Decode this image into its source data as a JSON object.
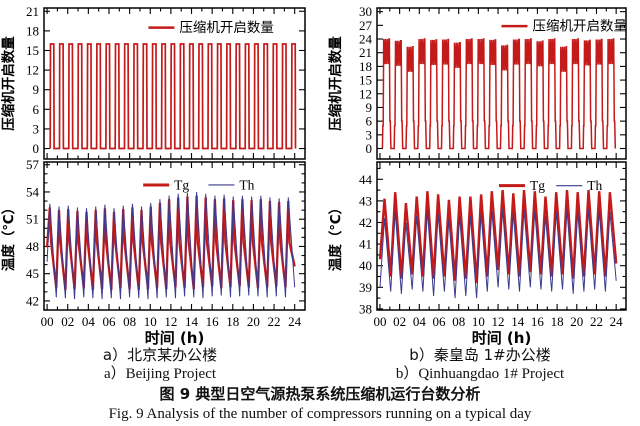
{
  "colors": {
    "tg_red": "#C41A1A",
    "th_navy": "#3A3A8F",
    "axis": "#000000"
  },
  "captions": {
    "left_cn": "a）北京某办公楼",
    "left_en": "a）Beijing Project",
    "right_cn": "b）秦皇岛 1#办公楼",
    "right_en": "b）Qinhuangdao 1# Project",
    "fig_cn": "图 9  典型日空气源热泵系统压缩机运行台数分析",
    "fig_en": "Fig. 9  Analysis of the number of compressors running on a typical day"
  },
  "chart_data": [
    {
      "id": "beijing-compressors",
      "type": "pulse",
      "ylabel": "压缩机开启数量",
      "xlabel": "",
      "ylim": [
        -1.6,
        21.5
      ],
      "yticks": [
        0,
        3,
        6,
        9,
        12,
        15,
        18,
        21
      ],
      "y_minor_step": 0,
      "xlim": [
        -0.3,
        25.0
      ],
      "xtick_step": 2,
      "x_minor_step": 1,
      "xtick_labels": null,
      "legend": [
        {
          "label": "压缩机开启数量",
          "color": "#C41A1A",
          "lw": 2.5
        }
      ],
      "series": [
        {
          "name": "压缩机开启数量",
          "color": "#C41A1A",
          "lw": 1.7,
          "base": 0,
          "start": 0.3,
          "period": 0.9,
          "pulse_width": 0.38,
          "shoulder": 0,
          "notch": 0,
          "peaks": [
            16,
            16,
            16,
            16,
            16,
            16,
            16,
            16,
            16,
            16,
            16,
            16,
            16,
            16,
            16,
            16,
            16,
            16,
            16,
            16,
            16,
            16,
            16,
            16,
            16,
            16,
            16
          ]
        }
      ]
    },
    {
      "id": "qinhuangdao-compressors",
      "type": "pulse",
      "ylabel": "压缩机开启数量",
      "xlabel": "",
      "ylim": [
        -2.3,
        30.8
      ],
      "yticks": [
        0,
        3,
        6,
        9,
        12,
        15,
        18,
        21,
        24,
        27,
        30
      ],
      "y_minor_step": 0,
      "xlim": [
        -0.3,
        25.0
      ],
      "xtick_step": 2,
      "x_minor_step": 1,
      "xtick_labels": null,
      "legend": [
        {
          "label": "压缩机开启数量",
          "color": "#C41A1A",
          "lw": 2.5
        }
      ],
      "series": [
        {
          "name": "压缩机开启数量",
          "color": "#C41A1A",
          "lw": 1.5,
          "base": 0,
          "start": 0.25,
          "period": 1.2,
          "pulse_width": 0.86,
          "shoulder": 5,
          "notch": 5.5,
          "peaks": [
            24,
            23.6,
            22.3,
            24,
            23.8,
            23.9,
            23.2,
            24,
            24,
            23.8,
            22.6,
            23.9,
            24,
            23.5,
            24,
            22.3,
            24,
            23.7,
            23.9,
            24
          ]
        }
      ]
    },
    {
      "id": "beijing-temperatures",
      "type": "spikes",
      "ylabel": "温度（℃）",
      "xlabel": "时间 (h)",
      "ylim": [
        41.0,
        57.3
      ],
      "yticks": [
        42,
        45,
        48,
        51,
        54,
        57
      ],
      "y_minor_step": 1,
      "xlim": [
        -0.3,
        25.0
      ],
      "xtick_step": 2,
      "x_minor_step": 1,
      "xtick_labels": [
        "00",
        "02",
        "04",
        "06",
        "08",
        "10",
        "12",
        "14",
        "16",
        "18",
        "20",
        "22",
        "24"
      ],
      "span": 24,
      "legend": [
        {
          "label": "Tg",
          "color": "#C41A1A",
          "lw": 3
        },
        {
          "label": "Th",
          "color": "#3A3A8F",
          "lw": 1.2
        }
      ],
      "series": [
        {
          "name": "Tg",
          "color": "#C41A1A",
          "lw": 2.3,
          "peak_pos": 0.3,
          "shoulder": 48.4,
          "shoulder_pos": 0.44,
          "peaks": [
            52.3,
            52.0,
            52.1,
            51.9,
            51.8,
            52.0,
            52.2,
            51.8,
            52.1,
            52.3,
            52.0,
            52.4,
            52.8,
            53.2,
            53.4,
            53.5,
            53.6,
            53.4,
            53.2,
            53.3,
            53.1,
            53.2,
            53.1,
            53.2,
            53.0,
            52.9,
            53.0
          ],
          "mins": [
            47.9,
            43.4,
            43.2,
            43.3,
            43.4,
            43.2,
            43.3,
            43.2,
            43.4,
            43.3,
            43.2,
            43.3,
            43.4,
            43.3,
            43.5,
            43.4,
            43.3,
            43.5,
            43.6,
            43.4,
            43.5,
            43.6,
            43.5,
            43.4,
            43.5,
            43.6,
            43.5,
            45.8
          ]
        },
        {
          "name": "Th",
          "color": "#3A3A8F",
          "lw": 1.0,
          "peak_pos": 0.3,
          "shoulder": null,
          "shoulder_pos": 0,
          "peaks": [
            52.7,
            52.4,
            52.5,
            52.3,
            52.2,
            52.4,
            52.6,
            52.2,
            52.5,
            52.7,
            52.4,
            52.8,
            53.2,
            53.6,
            53.8,
            53.9,
            54.0,
            53.8,
            53.6,
            53.7,
            53.5,
            53.6,
            53.5,
            53.6,
            53.4,
            53.3,
            53.4
          ],
          "mins": [
            46.3,
            42.4,
            42.3,
            42.2,
            42.4,
            42.3,
            42.2,
            42.3,
            42.2,
            42.4,
            42.3,
            42.2,
            42.3,
            42.4,
            42.3,
            42.5,
            42.4,
            42.3,
            42.5,
            42.6,
            42.4,
            42.5,
            42.6,
            42.5,
            42.4,
            42.5,
            42.4,
            43.5
          ]
        }
      ]
    },
    {
      "id": "qinhuangdao-temperatures",
      "type": "spikes",
      "ylabel": "温度（℃）",
      "xlabel": "时间 (h)",
      "ylim": [
        37.95,
        44.8
      ],
      "yticks": [
        38,
        39,
        40,
        41,
        42,
        43,
        44
      ],
      "y_minor_step": 0.5,
      "xlim": [
        -0.3,
        25.0
      ],
      "xtick_step": 2,
      "x_minor_step": 1,
      "xtick_labels": [
        "00",
        "02",
        "04",
        "06",
        "08",
        "10",
        "12",
        "14",
        "16",
        "18",
        "20",
        "22",
        "24"
      ],
      "span": 24,
      "legend": [
        {
          "label": "Tg",
          "color": "#C41A1A",
          "lw": 3
        },
        {
          "label": "Th",
          "color": "#3A3A8F",
          "lw": 1.2
        }
      ],
      "series": [
        {
          "name": "Tg",
          "color": "#C41A1A",
          "lw": 2.4,
          "peak_pos": 0.42,
          "shoulder": null,
          "shoulder_pos": 0,
          "peaks": [
            43.1,
            43.4,
            42.9,
            43.2,
            43.45,
            43.3,
            43.05,
            43.2,
            43.2,
            43.3,
            43.45,
            43.5,
            43.35,
            43.5,
            43.45,
            43.2,
            43.4,
            43.5,
            43.4,
            43.5,
            43.45,
            43.4
          ],
          "mins": [
            40.3,
            39.5,
            39.4,
            39.6,
            39.5,
            39.4,
            39.5,
            39.3,
            39.4,
            39.2,
            39.5,
            39.8,
            39.6,
            39.5,
            39.7,
            39.6,
            39.5,
            39.6,
            39.4,
            39.5,
            39.6,
            39.5,
            40.1
          ]
        },
        {
          "name": "Th",
          "color": "#3A3A8F",
          "lw": 1.0,
          "peak_pos": 0.42,
          "shoulder": null,
          "shoulder_pos": 0,
          "peaks": [
            42.2,
            42.5,
            42.0,
            42.3,
            42.55,
            42.4,
            42.15,
            42.3,
            42.3,
            42.4,
            42.55,
            42.6,
            42.45,
            42.6,
            42.55,
            42.3,
            42.5,
            42.6,
            42.5,
            42.6,
            42.55,
            42.5
          ],
          "mins": [
            39.0,
            38.8,
            38.7,
            38.9,
            38.8,
            38.6,
            38.8,
            38.5,
            38.6,
            38.5,
            38.8,
            39.0,
            38.9,
            38.8,
            39.0,
            38.9,
            38.8,
            38.9,
            38.7,
            38.8,
            38.9,
            38.8,
            39.3
          ]
        }
      ]
    }
  ]
}
